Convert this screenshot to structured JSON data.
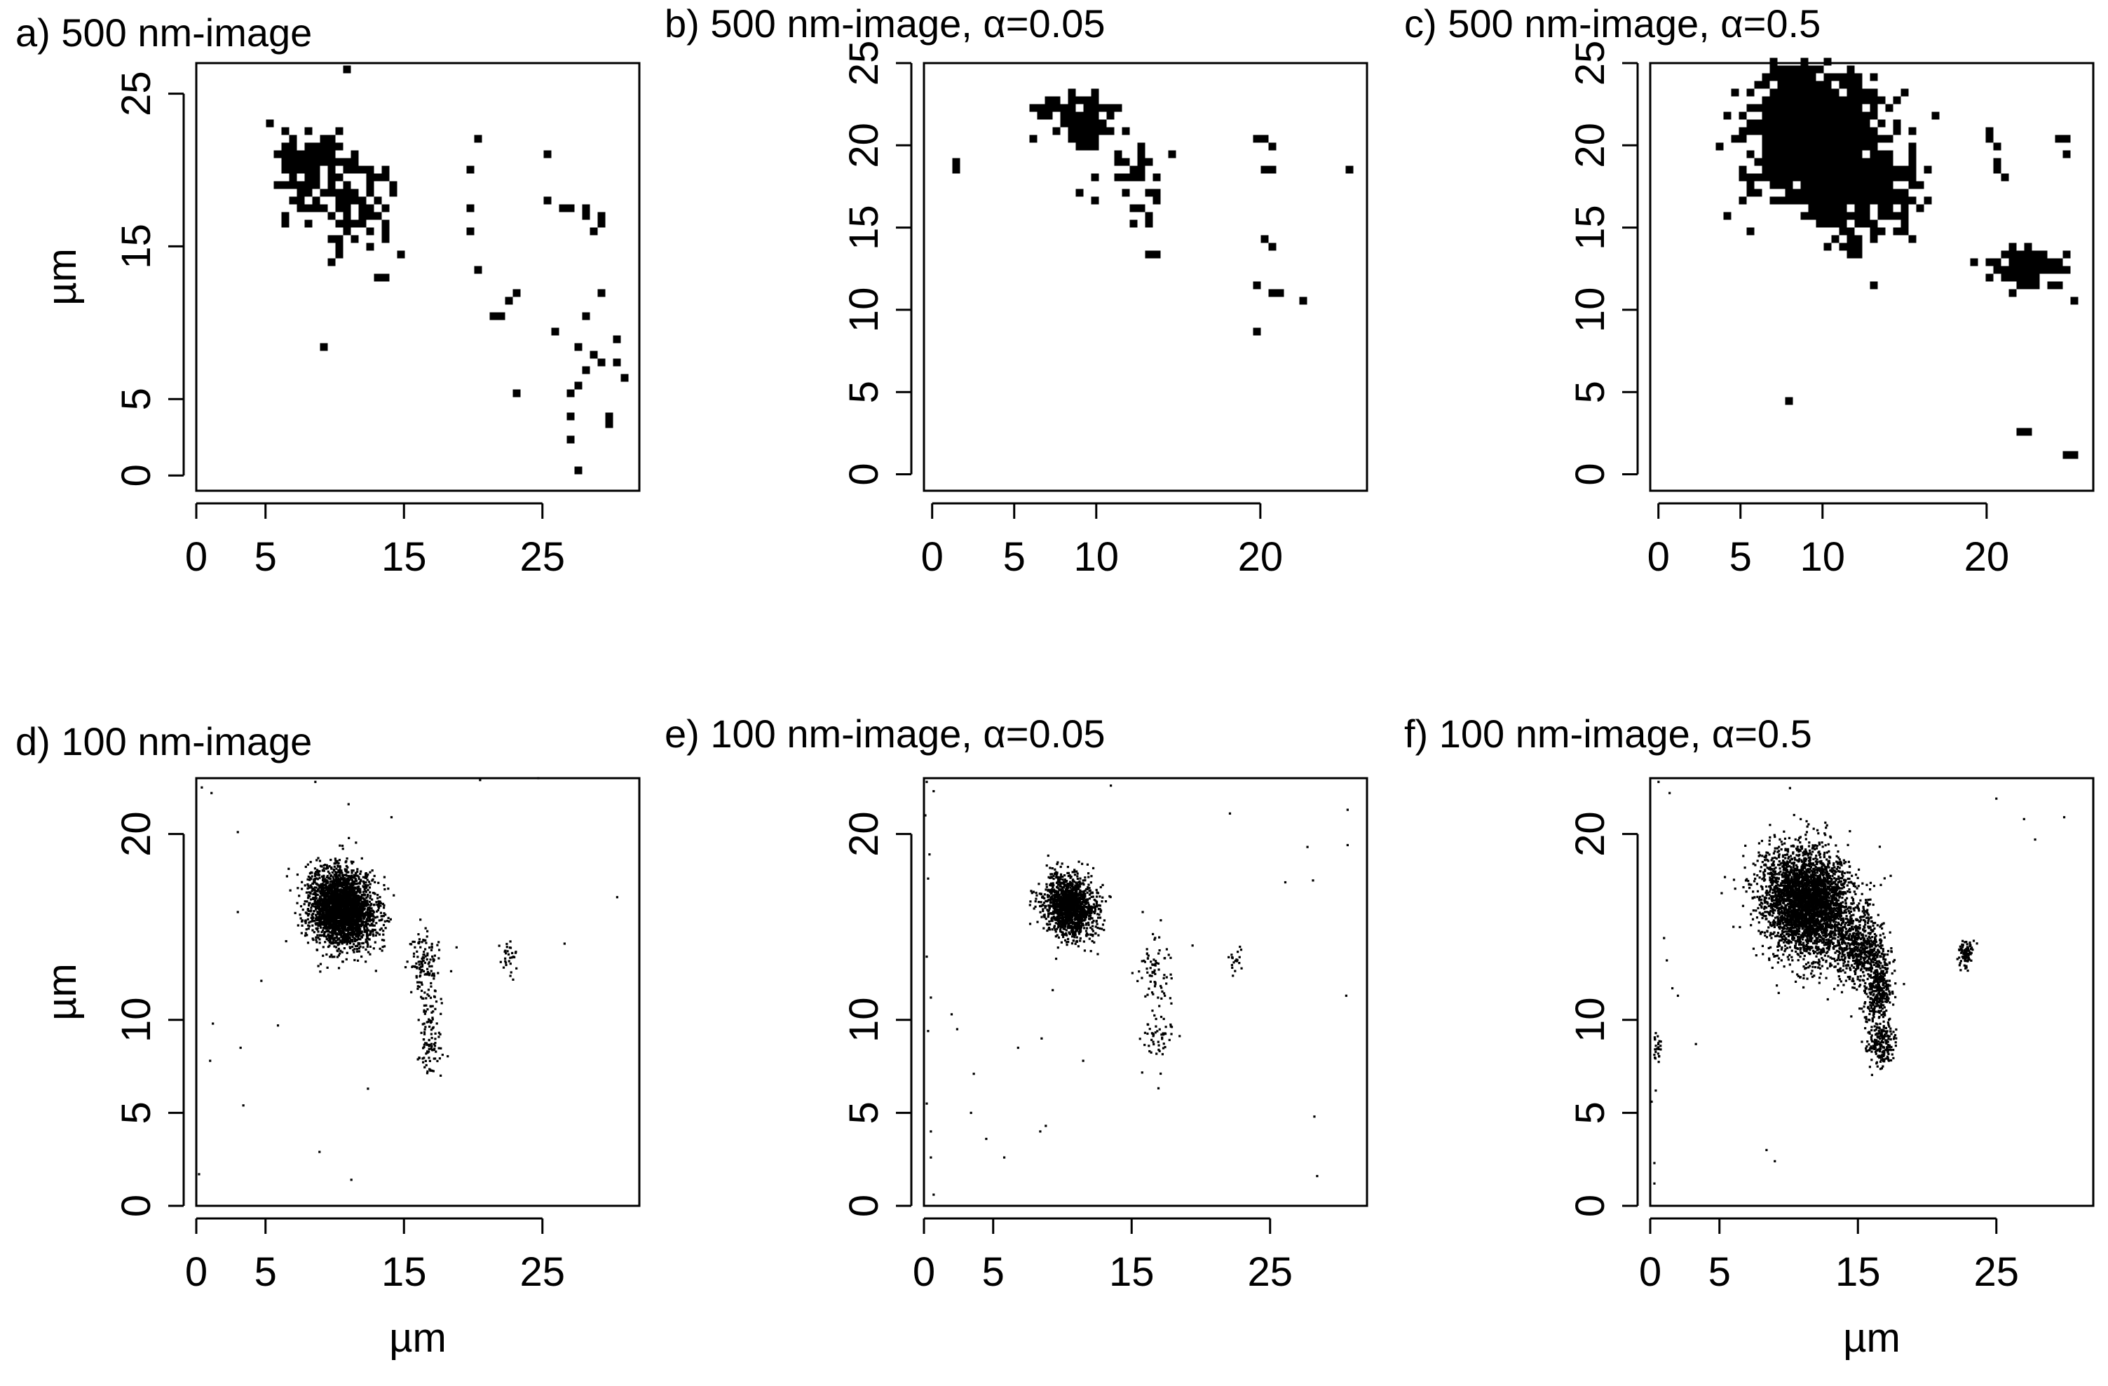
{
  "figure": {
    "panel_titles": [
      "a) 500 nm-image",
      "b) 500 nm-image, α=0.05",
      "c) 500 nm-image, α=0.5",
      "d) 100 nm-image",
      "e) 100 nm-image, α=0.05",
      "f) 100 nm-image, α=0.5"
    ],
    "axis_unit_label": "µm",
    "colors": {
      "points": "#000000",
      "axes": "#000000",
      "background": "#ffffff"
    }
  },
  "chart_data": [
    {
      "type": "scatter",
      "title": "a) 500 nm-image",
      "xlabel": "",
      "ylabel": "µm",
      "xlim": [
        0,
        32
      ],
      "ylim": [
        -1,
        27
      ],
      "xticks": [
        0,
        5,
        15,
        25
      ],
      "yticks": [
        0,
        5,
        15,
        25
      ],
      "marker": "square-pixel",
      "clusters": [
        {
          "cx": 8.5,
          "cy": 20.3,
          "sx": 1.2,
          "sy": 1.3,
          "rot": -35,
          "n": 150
        },
        {
          "cx": 12.0,
          "cy": 17.3,
          "sx": 1.1,
          "sy": 1.5,
          "rot": -35,
          "n": 55
        }
      ],
      "points": [
        [
          9.3,
          8.2
        ],
        [
          11.1,
          26.8
        ],
        [
          19.8,
          19.8
        ],
        [
          19.8,
          17.6
        ],
        [
          20.0,
          16.0
        ],
        [
          20.2,
          13.7
        ],
        [
          20.3,
          21.8
        ],
        [
          21.2,
          10.6
        ],
        [
          22.3,
          10.6
        ],
        [
          22.6,
          11.3
        ],
        [
          23.0,
          12.0
        ],
        [
          23.1,
          5.2
        ],
        [
          25.3,
          17.8
        ],
        [
          25.5,
          21.0
        ],
        [
          26.0,
          9.6
        ],
        [
          26.7,
          17.6
        ],
        [
          27.0,
          17.4
        ],
        [
          27.0,
          4.0
        ],
        [
          27.0,
          2.2
        ],
        [
          27.2,
          5.5
        ],
        [
          27.4,
          6.0
        ],
        [
          27.5,
          8.3
        ],
        [
          27.6,
          0.5
        ],
        [
          28.0,
          10.4
        ],
        [
          28.1,
          17.3
        ],
        [
          28.3,
          16.9
        ],
        [
          28.4,
          6.7
        ],
        [
          28.6,
          16.2
        ],
        [
          28.9,
          8.0
        ],
        [
          29.1,
          16.3
        ],
        [
          29.4,
          7.5
        ],
        [
          29.4,
          16.9
        ],
        [
          29.5,
          12.0
        ],
        [
          29.6,
          4.1
        ],
        [
          29.8,
          3.6
        ],
        [
          30.2,
          7.6
        ],
        [
          30.5,
          8.9
        ],
        [
          30.6,
          7.2
        ],
        [
          31.0,
          6.5
        ],
        [
          14.6,
          14.5
        ],
        [
          13.0,
          13.0
        ],
        [
          13.5,
          12.9
        ]
      ]
    },
    {
      "type": "scatter",
      "title": "b) 500 nm-image, α=0.05",
      "xlabel": "",
      "ylabel": "",
      "xlim": [
        -0.5,
        26.5
      ],
      "ylim": [
        -1,
        25
      ],
      "xticks": [
        0,
        5,
        10,
        20
      ],
      "yticks": [
        0,
        5,
        10,
        15,
        20,
        25
      ],
      "marker": "square-pixel",
      "clusters": [
        {
          "cx": 9.0,
          "cy": 21.6,
          "sx": 1.1,
          "sy": 0.9,
          "rot": -30,
          "n": 85
        },
        {
          "cx": 12.4,
          "cy": 18.5,
          "sx": 0.8,
          "sy": 0.9,
          "rot": 0,
          "n": 25
        }
      ],
      "points": [
        [
          1.5,
          18.6
        ],
        [
          1.5,
          18.9
        ],
        [
          9.2,
          17.3
        ],
        [
          10.1,
          19.8
        ],
        [
          11.4,
          22.4
        ],
        [
          12.1,
          16.1
        ],
        [
          12.3,
          15.1
        ],
        [
          13.1,
          15.4
        ],
        [
          13.4,
          15.8
        ],
        [
          13.8,
          17.0
        ],
        [
          13.9,
          16.6
        ],
        [
          13.1,
          13.5
        ],
        [
          13.3,
          13.2
        ],
        [
          13.7,
          13.2
        ],
        [
          13.9,
          13.4
        ],
        [
          20.0,
          20.5
        ],
        [
          20.4,
          20.6
        ],
        [
          20.5,
          20.1
        ],
        [
          20.1,
          18.6
        ],
        [
          20.5,
          18.3
        ],
        [
          20.3,
          14.5
        ],
        [
          20.6,
          13.9
        ],
        [
          19.9,
          11.6
        ],
        [
          19.9,
          8.6
        ],
        [
          20.9,
          11.0
        ],
        [
          21.3,
          10.8
        ],
        [
          22.8,
          10.4
        ],
        [
          25.6,
          18.5
        ]
      ]
    },
    {
      "type": "scatter",
      "title": "c) 500 nm-image, α=0.5",
      "xlabel": "",
      "ylabel": "",
      "xlim": [
        -0.5,
        26.5
      ],
      "ylim": [
        -1,
        25
      ],
      "xticks": [
        0,
        5,
        10,
        20
      ],
      "yticks": [
        0,
        5,
        10,
        15,
        20,
        25
      ],
      "marker": "square-pixel",
      "clusters": [
        {
          "cx": 9.4,
          "cy": 20.6,
          "sx": 1.9,
          "sy": 2.0,
          "rot": -30,
          "n": 900
        },
        {
          "cx": 12.6,
          "cy": 17.5,
          "sx": 1.4,
          "sy": 1.7,
          "rot": -25,
          "n": 300
        },
        {
          "cx": 22.6,
          "cy": 12.6,
          "sx": 1.1,
          "sy": 0.6,
          "rot": 0,
          "n": 90
        }
      ],
      "points": [
        [
          7.8,
          4.5
        ],
        [
          20.0,
          20.5
        ],
        [
          20.4,
          20.7
        ],
        [
          20.5,
          19.8
        ],
        [
          20.6,
          19.2
        ],
        [
          20.7,
          18.4
        ],
        [
          20.9,
          18.1
        ],
        [
          24.2,
          20.6
        ],
        [
          24.7,
          20.4
        ],
        [
          25.0,
          19.5
        ],
        [
          25.5,
          10.4
        ],
        [
          22.0,
          2.8
        ],
        [
          22.3,
          2.8
        ],
        [
          21.9,
          2.5
        ],
        [
          24.9,
          1.3
        ],
        [
          25.2,
          1.3
        ],
        [
          24.9,
          1.0
        ]
      ]
    },
    {
      "type": "scatter",
      "title": "d) 100 nm-image",
      "xlabel": "µm",
      "ylabel": "µm",
      "xlim": [
        0,
        32
      ],
      "ylim": [
        0,
        23
      ],
      "xticks": [
        0,
        5,
        15,
        25
      ],
      "yticks": [
        0,
        5,
        10,
        20
      ],
      "marker": "dot",
      "clusters": [
        {
          "cx": 10.5,
          "cy": 16.0,
          "sx": 1.2,
          "sy": 1.0,
          "rot": -20,
          "n": 2800
        },
        {
          "cx": 16.5,
          "cy": 13.0,
          "sx": 0.6,
          "sy": 0.8,
          "rot": 0,
          "n": 110
        },
        {
          "cx": 16.8,
          "cy": 10.5,
          "sx": 0.4,
          "sy": 1.2,
          "rot": 0,
          "n": 60
        },
        {
          "cx": 16.9,
          "cy": 8.3,
          "sx": 0.4,
          "sy": 0.6,
          "rot": 0,
          "n": 60
        },
        {
          "cx": 22.6,
          "cy": 13.3,
          "sx": 0.3,
          "sy": 0.5,
          "rot": 0,
          "n": 30
        }
      ],
      "points": [
        [
          0.4,
          22.5
        ],
        [
          1.1,
          22.2
        ],
        [
          0.2,
          1.7
        ],
        [
          1.0,
          7.8
        ],
        [
          1.2,
          9.8
        ],
        [
          3.0,
          20.1
        ],
        [
          3.0,
          15.8
        ],
        [
          3.2,
          8.5
        ],
        [
          3.4,
          5.4
        ],
        [
          4.7,
          12.1
        ],
        [
          5.9,
          9.7
        ],
        [
          8.6,
          22.8
        ],
        [
          8.9,
          2.9
        ],
        [
          10.9,
          13.6
        ],
        [
          11.0,
          21.6
        ],
        [
          11.2,
          1.4
        ],
        [
          12.4,
          6.3
        ],
        [
          14.1,
          20.9
        ],
        [
          18.8,
          13.9
        ],
        [
          20.5,
          22.9
        ],
        [
          24.7,
          23.0
        ],
        [
          26.6,
          14.1
        ],
        [
          30.4,
          16.6
        ]
      ]
    },
    {
      "type": "scatter",
      "title": "e) 100 nm-image, α=0.05",
      "xlabel": "",
      "ylabel": "",
      "xlim": [
        0,
        32
      ],
      "ylim": [
        0,
        23
      ],
      "xticks": [
        0,
        5,
        15,
        25
      ],
      "yticks": [
        0,
        5,
        10,
        20
      ],
      "marker": "dot",
      "clusters": [
        {
          "cx": 10.5,
          "cy": 16.1,
          "sx": 0.95,
          "sy": 0.8,
          "rot": -20,
          "n": 1400
        },
        {
          "cx": 16.6,
          "cy": 12.8,
          "sx": 0.6,
          "sy": 0.9,
          "rot": 0,
          "n": 70
        },
        {
          "cx": 16.8,
          "cy": 8.8,
          "sx": 0.6,
          "sy": 0.9,
          "rot": 0,
          "n": 55
        },
        {
          "cx": 22.6,
          "cy": 13.3,
          "sx": 0.3,
          "sy": 0.4,
          "rot": 0,
          "n": 20
        }
      ],
      "points": [
        [
          0.2,
          22.8
        ],
        [
          0.7,
          22.3
        ],
        [
          0.1,
          21.0
        ],
        [
          0.4,
          18.9
        ],
        [
          0.3,
          17.6
        ],
        [
          0.2,
          13.4
        ],
        [
          0.5,
          11.2
        ],
        [
          0.3,
          9.4
        ],
        [
          0.2,
          5.5
        ],
        [
          0.5,
          4.0
        ],
        [
          0.5,
          2.6
        ],
        [
          0.7,
          0.6
        ],
        [
          2.0,
          10.3
        ],
        [
          2.4,
          9.5
        ],
        [
          3.4,
          5.0
        ],
        [
          3.6,
          7.1
        ],
        [
          4.5,
          3.6
        ],
        [
          5.8,
          2.6
        ],
        [
          6.8,
          8.5
        ],
        [
          8.4,
          4.0
        ],
        [
          8.5,
          9.0
        ],
        [
          8.8,
          4.3
        ],
        [
          9.3,
          11.6
        ],
        [
          11.5,
          7.8
        ],
        [
          13.5,
          22.6
        ],
        [
          15.8,
          15.8
        ],
        [
          17.4,
          11.3
        ],
        [
          19.4,
          14.0
        ],
        [
          22.1,
          21.1
        ],
        [
          26.1,
          17.4
        ],
        [
          27.7,
          19.3
        ],
        [
          28.1,
          17.5
        ],
        [
          28.2,
          4.8
        ],
        [
          28.4,
          1.6
        ],
        [
          30.5,
          11.3
        ],
        [
          30.6,
          19.4
        ],
        [
          30.6,
          21.3
        ]
      ]
    },
    {
      "type": "scatter",
      "title": "f) 100 nm-image, α=0.5",
      "xlabel": "µm",
      "ylabel": "",
      "xlim": [
        0,
        32
      ],
      "ylim": [
        0,
        23
      ],
      "xticks": [
        0,
        5,
        15,
        25
      ],
      "yticks": [
        0,
        5,
        10,
        20
      ],
      "marker": "dot",
      "clusters": [
        {
          "cx": 11.4,
          "cy": 16.3,
          "sx": 1.7,
          "sy": 1.4,
          "rot": -25,
          "n": 3500
        },
        {
          "cx": 15.2,
          "cy": 13.8,
          "sx": 0.9,
          "sy": 0.9,
          "rot": 0,
          "n": 500
        },
        {
          "cx": 16.5,
          "cy": 11.5,
          "sx": 0.5,
          "sy": 1.0,
          "rot": 0,
          "n": 350
        },
        {
          "cx": 16.7,
          "cy": 8.7,
          "sx": 0.5,
          "sy": 0.6,
          "rot": 0,
          "n": 200
        },
        {
          "cx": 22.8,
          "cy": 13.5,
          "sx": 0.25,
          "sy": 0.4,
          "rot": 0,
          "n": 90
        },
        {
          "cx": 0.5,
          "cy": 8.5,
          "sx": 0.2,
          "sy": 0.5,
          "rot": 0,
          "n": 25
        }
      ],
      "points": [
        [
          0.6,
          22.8
        ],
        [
          1.4,
          22.2
        ],
        [
          1.0,
          14.4
        ],
        [
          1.2,
          13.2
        ],
        [
          1.6,
          11.7
        ],
        [
          2.0,
          11.3
        ],
        [
          0.1,
          5.6
        ],
        [
          0.4,
          6.2
        ],
        [
          0.3,
          2.3
        ],
        [
          0.3,
          1.2
        ],
        [
          3.3,
          8.7
        ],
        [
          8.4,
          3.0
        ],
        [
          9.0,
          2.4
        ],
        [
          25.0,
          21.9
        ],
        [
          27.0,
          20.8
        ],
        [
          27.8,
          19.7
        ],
        [
          29.9,
          20.9
        ]
      ]
    }
  ]
}
